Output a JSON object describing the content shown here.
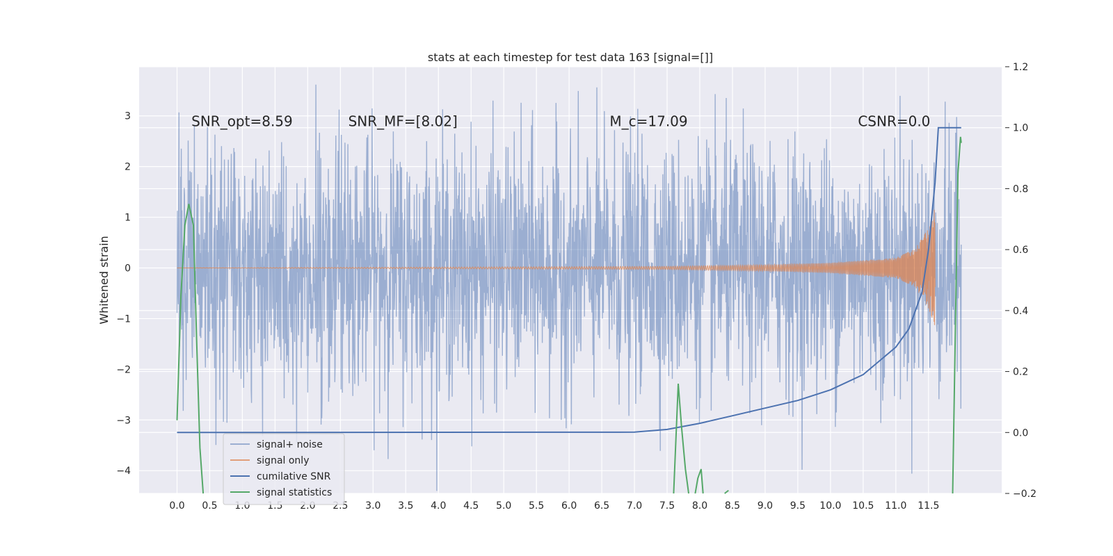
{
  "chart_data": {
    "type": "line",
    "title": "stats at each timestep for test data 163 [signal=[]]",
    "ylabel": "Whitened strain",
    "xlabel": "",
    "xlim": [
      -0.58,
      12.62
    ],
    "ylim": [
      -4.45,
      3.97
    ],
    "y2lim": [
      -0.2,
      1.2
    ],
    "grid": true,
    "legend_position": "lower-left",
    "x_ticks": [
      "0.0",
      "0.5",
      "1.0",
      "1.5",
      "2.0",
      "2.5",
      "3.0",
      "3.5",
      "4.0",
      "4.5",
      "5.0",
      "5.5",
      "6.0",
      "6.5",
      "7.0",
      "7.5",
      "8.0",
      "8.5",
      "9.0",
      "9.5",
      "10.0",
      "10.5",
      "11.0",
      "11.5"
    ],
    "y_ticks": [
      "3",
      "2",
      "1",
      "0",
      "−1",
      "−2",
      "−3",
      "−4"
    ],
    "y2_ticks": [
      "1.2",
      "1.0",
      "0.8",
      "0.6",
      "0.4",
      "0.2",
      "0.0",
      "−0.2"
    ],
    "annotations": [
      {
        "text": "SNR_opt=8.59",
        "x": 0.22,
        "y": 2.8
      },
      {
        "text": "SNR_MF=[8.02]",
        "x": 2.62,
        "y": 2.8
      },
      {
        "text": "M_c=17.09",
        "x": 6.62,
        "y": 2.8
      },
      {
        "text": "CSNR=0.0",
        "x": 10.42,
        "y": 2.8
      }
    ],
    "series": [
      {
        "name": "signal+ noise",
        "axis": "left",
        "color": "#4c72b0",
        "kind": "noise",
        "t_start": 0.0,
        "t_end": 12.0,
        "noise_amplitude": 1.2
      },
      {
        "name": "signal only",
        "axis": "left",
        "color": "#dd8452",
        "kind": "chirp",
        "t_start": 0.0,
        "t_end": 11.6,
        "x": [
          0,
          7.5,
          9.0,
          10.0,
          11.0,
          11.3,
          11.5,
          11.6
        ],
        "y": [
          0.0,
          0.03,
          0.06,
          0.1,
          0.2,
          0.38,
          0.8,
          1.2
        ]
      },
      {
        "name": "cumilative SNR",
        "axis": "right",
        "color": "#4c72b0",
        "x": [
          0.0,
          7.0,
          7.5,
          8.0,
          8.5,
          9.0,
          9.5,
          10.0,
          10.5,
          11.0,
          11.2,
          11.4,
          11.5,
          11.6,
          11.65,
          11.7,
          12.0
        ],
        "y": [
          0.0,
          0.001,
          0.01,
          0.03,
          0.055,
          0.08,
          0.105,
          0.14,
          0.19,
          0.28,
          0.34,
          0.46,
          0.6,
          0.82,
          1.0,
          1.0,
          1.0
        ]
      },
      {
        "name": "signal statistics",
        "axis": "right",
        "color": "#55a868",
        "segments": [
          {
            "x": [
              0.0,
              0.06,
              0.12,
              0.18,
              0.25,
              0.3,
              0.35,
              0.4
            ],
            "y": [
              0.04,
              0.45,
              0.68,
              0.75,
              0.68,
              0.3,
              -0.05,
              -0.2
            ]
          },
          {
            "x": [
              7.6,
              7.67,
              7.72,
              7.78,
              7.83
            ],
            "y": [
              -0.2,
              0.16,
              0.02,
              -0.12,
              -0.2
            ]
          },
          {
            "x": [
              7.93,
              7.97,
              8.02,
              8.05
            ],
            "y": [
              -0.2,
              -0.15,
              -0.12,
              -0.2
            ]
          },
          {
            "x": [
              8.38,
              8.44
            ],
            "y": [
              -0.2,
              -0.19
            ]
          },
          {
            "x": [
              11.87,
              11.9,
              11.95,
              11.99,
              12.0
            ],
            "y": [
              -0.2,
              0.2,
              0.85,
              0.97,
              0.95
            ]
          }
        ]
      }
    ]
  }
}
